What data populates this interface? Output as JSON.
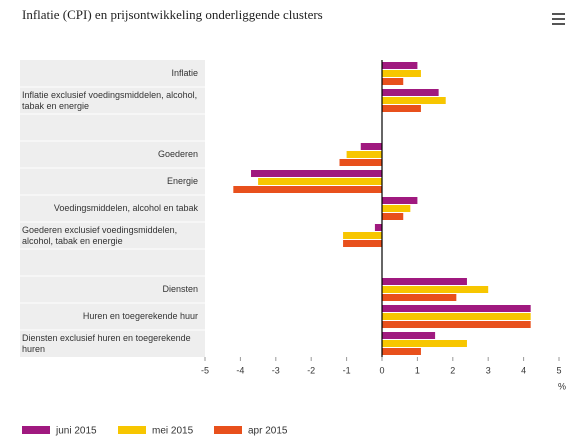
{
  "chart_data": {
    "type": "hbar",
    "title": "Inflatie (CPI) en prijsontwikkeling onderliggende clusters",
    "categories": [
      "Inflatie",
      "Inflatie exclusief voedingsmiddelen, alcohol, tabak en energie",
      null,
      "Goederen",
      "Energie",
      "Voedingsmiddelen, alcohol en tabak",
      "Goederen exclusief voedingsmiddelen, alcohol, tabak en energie",
      null,
      "Diensten",
      "Huren en toegerekende huur",
      "Diensten exclusief huren en toegerekende huren"
    ],
    "series": [
      {
        "name": "juni 2015",
        "color": "#a0197f",
        "values": [
          1.0,
          1.6,
          null,
          -0.6,
          -3.7,
          1.0,
          -0.2,
          null,
          2.4,
          4.2,
          1.5
        ]
      },
      {
        "name": "mei 2015",
        "color": "#f7c600",
        "values": [
          1.1,
          1.8,
          null,
          -1.0,
          -3.5,
          0.8,
          -1.1,
          null,
          3.0,
          4.2,
          2.4
        ]
      },
      {
        "name": "apr 2015",
        "color": "#e8501c",
        "values": [
          0.6,
          1.1,
          null,
          -1.2,
          -4.2,
          0.6,
          -1.1,
          null,
          2.1,
          4.2,
          1.1
        ]
      }
    ],
    "xlabel": "%",
    "xlim": [
      -5,
      5
    ],
    "xticks": [
      -5,
      -4,
      -3,
      -2,
      -1,
      0,
      1,
      2,
      3,
      4,
      5
    ],
    "legend": "bottom"
  }
}
